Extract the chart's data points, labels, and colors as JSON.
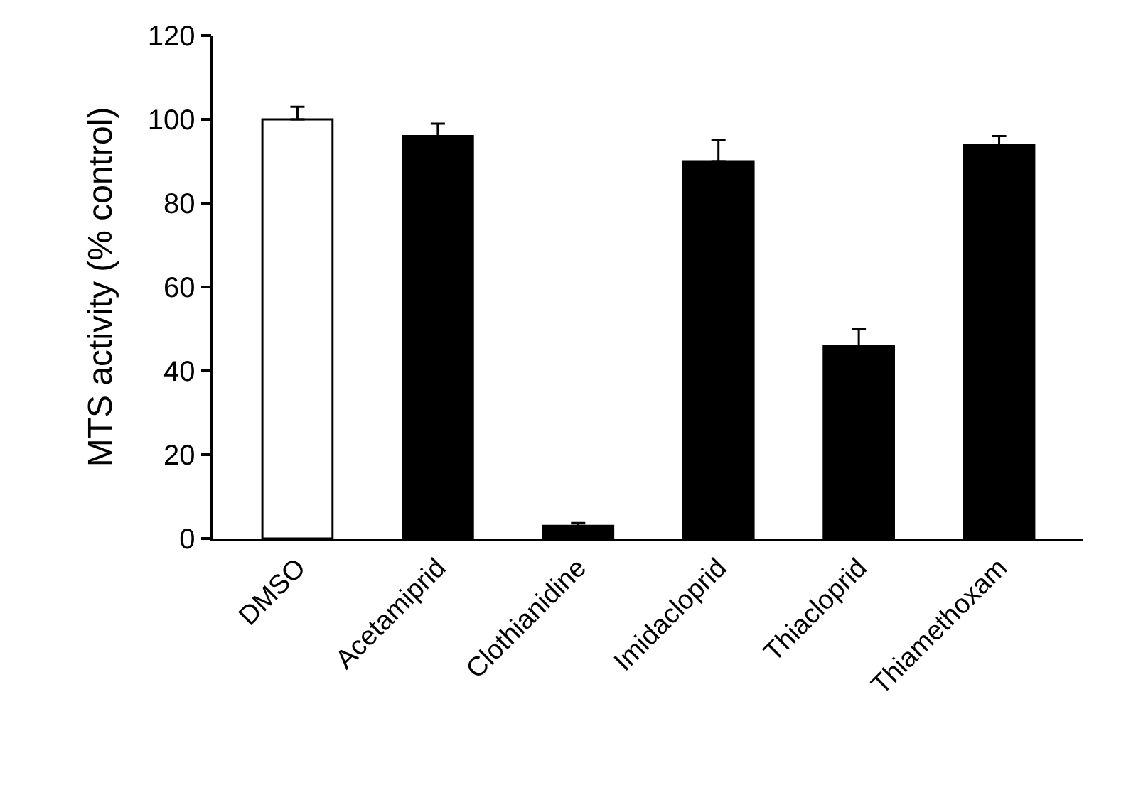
{
  "chart_data": {
    "type": "bar",
    "ylabel": "MTS activity (% control)",
    "categories": [
      "DMSO",
      "Acetamiprid",
      "Clothianidine",
      "Imidacloprid",
      "Thiacloprid",
      "Thiamethoxam"
    ],
    "values": [
      100,
      96,
      3,
      90,
      46,
      94
    ],
    "colors": [
      "#ffffff",
      "#000000",
      "#000000",
      "#000000",
      "#000000",
      "#000000"
    ],
    "errors": [
      [
        100,
        103
      ],
      [
        96,
        99
      ],
      [
        3,
        3.7
      ],
      [
        90,
        95
      ],
      [
        46,
        50
      ],
      [
        94,
        96
      ]
    ],
    "ylim": [
      0,
      120
    ],
    "yticks": [
      0,
      20,
      40,
      60,
      80,
      100,
      120
    ],
    "grid": false
  }
}
